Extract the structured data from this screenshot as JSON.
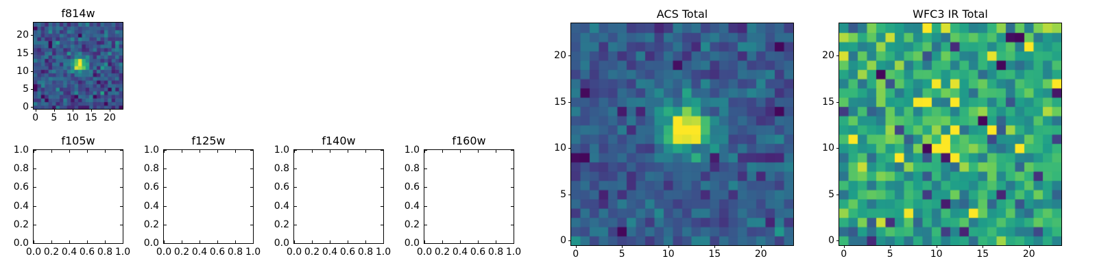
{
  "figure": {
    "background_color": "#ffffff",
    "text_color": "#000000"
  },
  "chart_data": [
    {
      "id": "f814w",
      "type": "heatmap",
      "title": "f814w",
      "colormap": "viridis",
      "grid_size": [
        24,
        24
      ],
      "xlim": [
        -0.5,
        23.5
      ],
      "ylim": [
        -0.5,
        23.5
      ],
      "xticks": [
        0,
        5,
        10,
        15,
        20
      ],
      "xtick_labels": [
        "0",
        "5",
        "10",
        "15",
        "20"
      ],
      "yticks": [
        0,
        5,
        10,
        15,
        20
      ],
      "ytick_labels": [
        "0",
        "5",
        "10",
        "15",
        "20"
      ],
      "description": "24x24 image stamp: noisy dark blue/purple background with bright compact yellow point source centered near pixel (12,12)",
      "procedural_model": {
        "seed": 41,
        "noise_mean": 0.3,
        "noise_sd": 0.11,
        "speck_prob": 0.05,
        "speck_depth": 0.25,
        "source_x": 12,
        "source_y": 12,
        "source_amplitude": 0.8,
        "source_sigma": 1.5
      }
    },
    {
      "id": "f105w",
      "type": "empty",
      "title": "f105w",
      "xlim": [
        0,
        1
      ],
      "ylim": [
        0,
        1
      ],
      "xticks": [
        0,
        0.2,
        0.4,
        0.6,
        0.8,
        1.0
      ],
      "xtick_labels": [
        "0.0",
        "0.2",
        "0.4",
        "0.6",
        "0.8",
        "1.0"
      ],
      "yticks": [
        0,
        0.2,
        0.4,
        0.6,
        0.8,
        1.0
      ],
      "ytick_labels": [
        "0.0",
        "0.2",
        "0.4",
        "0.6",
        "0.8",
        "1.0"
      ]
    },
    {
      "id": "f125w",
      "type": "empty",
      "title": "f125w",
      "xlim": [
        0,
        1
      ],
      "ylim": [
        0,
        1
      ],
      "xticks": [
        0,
        0.2,
        0.4,
        0.6,
        0.8,
        1.0
      ],
      "xtick_labels": [
        "0.0",
        "0.2",
        "0.4",
        "0.6",
        "0.8",
        "1.0"
      ],
      "yticks": [
        0,
        0.2,
        0.4,
        0.6,
        0.8,
        1.0
      ],
      "ytick_labels": [
        "0.0",
        "0.2",
        "0.4",
        "0.6",
        "0.8",
        "1.0"
      ]
    },
    {
      "id": "f140w",
      "type": "empty",
      "title": "f140w",
      "xlim": [
        0,
        1
      ],
      "ylim": [
        0,
        1
      ],
      "xticks": [
        0,
        0.2,
        0.4,
        0.6,
        0.8,
        1.0
      ],
      "xtick_labels": [
        "0.0",
        "0.2",
        "0.4",
        "0.6",
        "0.8",
        "1.0"
      ],
      "yticks": [
        0,
        0.2,
        0.4,
        0.6,
        0.8,
        1.0
      ],
      "ytick_labels": [
        "0.0",
        "0.2",
        "0.4",
        "0.6",
        "0.8",
        "1.0"
      ]
    },
    {
      "id": "f160w",
      "type": "empty",
      "title": "f160w",
      "xlim": [
        0,
        1
      ],
      "ylim": [
        0,
        1
      ],
      "xticks": [
        0,
        0.2,
        0.4,
        0.6,
        0.8,
        1.0
      ],
      "xtick_labels": [
        "0.0",
        "0.2",
        "0.4",
        "0.6",
        "0.8",
        "1.0"
      ],
      "yticks": [
        0,
        0.2,
        0.4,
        0.6,
        0.8,
        1.0
      ],
      "ytick_labels": [
        "0.0",
        "0.2",
        "0.4",
        "0.6",
        "0.8",
        "1.0"
      ]
    },
    {
      "id": "acs",
      "type": "heatmap",
      "title": "ACS Total",
      "colormap": "viridis",
      "grid_size": [
        24,
        24
      ],
      "xlim": [
        -0.5,
        23.5
      ],
      "ylim": [
        -0.5,
        23.5
      ],
      "xticks": [
        0,
        5,
        10,
        15,
        20
      ],
      "xtick_labels": [
        "0",
        "5",
        "10",
        "15",
        "20"
      ],
      "yticks": [
        0,
        5,
        10,
        15,
        20
      ],
      "ytick_labels": [
        "0",
        "5",
        "10",
        "15",
        "20"
      ],
      "description": "24x24 image stamp: noisy teal-blue background with scattered dark purple pixels and a bright yellow source centered near pixel (12,12)",
      "procedural_model": {
        "seed": 7,
        "noise_mean": 0.33,
        "noise_sd": 0.09,
        "speck_prob": 0.05,
        "speck_depth": 0.22,
        "source_x": 12,
        "source_y": 12,
        "source_amplitude": 0.85,
        "source_sigma": 1.9
      }
    },
    {
      "id": "wfc3",
      "type": "heatmap",
      "title": "WFC3 IR Total",
      "colormap": "viridis",
      "grid_size": [
        24,
        24
      ],
      "xlim": [
        -0.5,
        23.5
      ],
      "ylim": [
        -0.5,
        23.5
      ],
      "xticks": [
        0,
        5,
        10,
        15,
        20
      ],
      "xtick_labels": [
        "0",
        "5",
        "10",
        "15",
        "20"
      ],
      "yticks": [
        0,
        5,
        10,
        15,
        20
      ],
      "ytick_labels": [
        "0",
        "5",
        "10",
        "15",
        "20"
      ],
      "description": "24x24 image stamp: bright noisy green/yellow background with scattered dark navy pixels and a faint yellowish clump near the center",
      "procedural_model": {
        "seed": 99,
        "noise_mean": 0.67,
        "noise_sd": 0.16,
        "speck_prob": 0.045,
        "speck_depth": 0.5,
        "source_x": 12,
        "source_y": 12,
        "source_amplitude": 0.25,
        "source_sigma": 2.2
      }
    }
  ]
}
